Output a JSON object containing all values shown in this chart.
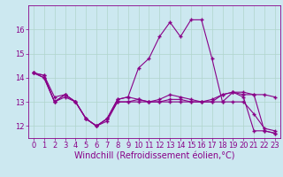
{
  "background_color": "#cce8f0",
  "grid_color": "#b0d4cc",
  "line_color": "#880088",
  "marker": "+",
  "marker_size": 3.5,
  "marker_lw": 1.0,
  "xlabel": "Windchill (Refroidissement éolien,°C)",
  "xlabel_fontsize": 7,
  "tick_fontsize": 6,
  "ylim": [
    11.5,
    17.0
  ],
  "yticks": [
    12,
    13,
    14,
    15,
    16
  ],
  "xlim": [
    -0.5,
    23.5
  ],
  "xticks": [
    0,
    1,
    2,
    3,
    4,
    5,
    6,
    7,
    8,
    9,
    10,
    11,
    12,
    13,
    14,
    15,
    16,
    17,
    18,
    19,
    20,
    21,
    22,
    23
  ],
  "series": [
    [
      14.2,
      14.0,
      13.0,
      13.3,
      13.0,
      12.3,
      12.0,
      12.3,
      13.1,
      13.2,
      13.1,
      13.0,
      13.1,
      13.3,
      13.2,
      13.1,
      13.0,
      13.1,
      13.3,
      13.4,
      13.2,
      11.8,
      11.8,
      11.7
    ],
    [
      14.2,
      14.0,
      13.0,
      13.3,
      13.0,
      12.3,
      12.0,
      12.3,
      13.1,
      13.2,
      14.4,
      14.8,
      15.7,
      16.3,
      15.7,
      16.4,
      16.4,
      14.8,
      13.0,
      13.4,
      13.3,
      13.3,
      11.8,
      11.7
    ],
    [
      14.2,
      14.1,
      13.2,
      13.3,
      13.0,
      12.3,
      12.0,
      12.3,
      13.0,
      13.0,
      13.1,
      13.0,
      13.0,
      13.1,
      13.1,
      13.0,
      13.0,
      13.0,
      13.3,
      13.4,
      13.4,
      13.3,
      13.3,
      13.2
    ],
    [
      14.2,
      14.1,
      13.0,
      13.2,
      13.0,
      12.3,
      12.0,
      12.2,
      13.0,
      13.0,
      13.0,
      13.0,
      13.0,
      13.0,
      13.0,
      13.0,
      13.0,
      13.0,
      13.0,
      13.0,
      13.0,
      12.5,
      11.9,
      11.8
    ]
  ]
}
